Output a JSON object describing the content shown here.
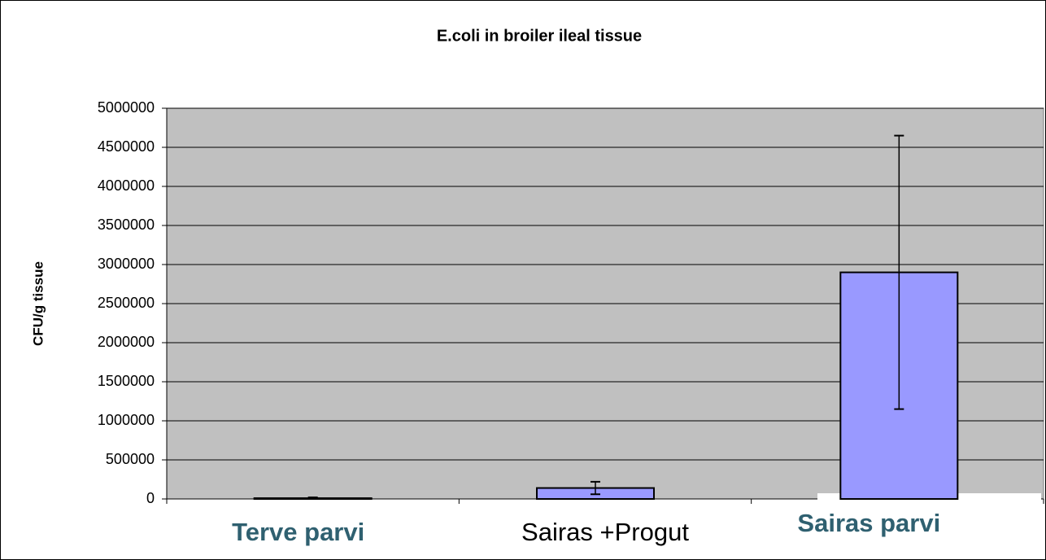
{
  "chart_data": {
    "type": "bar",
    "title": "E.coli in broiler ileal tissue",
    "y_label": "CFU/g tissue",
    "categories": [
      "Terve parvi",
      "Sairas +Progut",
      "Sairas parvi"
    ],
    "values": [
      10000,
      140000,
      2900000
    ],
    "errors": [
      10000,
      80000,
      1750000
    ],
    "color": "#9999ff",
    "ylim": [
      0,
      5000000
    ],
    "yticks": [
      0,
      500000,
      1000000,
      1500000,
      2000000,
      2500000,
      3000000,
      3500000,
      4000000,
      4500000,
      5000000
    ],
    "grid": true
  }
}
